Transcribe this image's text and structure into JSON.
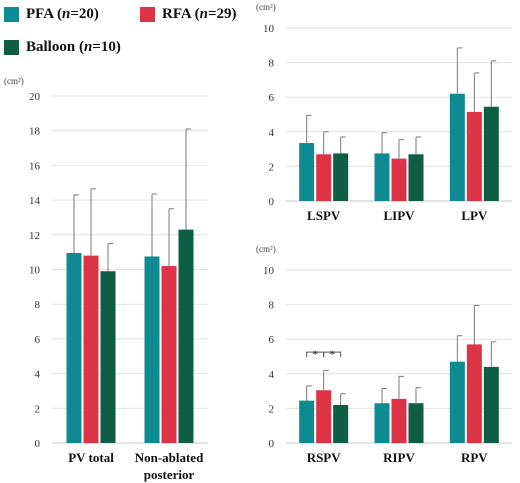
{
  "colors": {
    "PFA": "#0e8a92",
    "RFA": "#dc3445",
    "Balloon": "#0d5e44"
  },
  "legend": [
    {
      "key": "PFA",
      "name": "PFA",
      "n_prefix": "n",
      "n_value": "=20"
    },
    {
      "key": "RFA",
      "name": "RFA",
      "n_prefix": "n",
      "n_value": "=29"
    },
    {
      "key": "Balloon",
      "name": "Balloon",
      "n_prefix": "n",
      "n_value": "=10"
    }
  ],
  "chart_data": [
    {
      "type": "bar",
      "unit": "(cm²)",
      "ylim": [
        0,
        20
      ],
      "yticks": [
        "0",
        "2",
        "4",
        "6",
        "8",
        "10",
        "12",
        "14",
        "16",
        "18",
        "20"
      ],
      "grid": true,
      "categories": [
        [
          "PV total"
        ],
        [
          "Non-ablated",
          "posterior"
        ]
      ],
      "series": [
        {
          "name": "PFA",
          "values": [
            10.95,
            10.75
          ],
          "errors": [
            3.35,
            3.6
          ]
        },
        {
          "name": "RFA",
          "values": [
            10.8,
            10.2
          ],
          "errors": [
            3.85,
            3.3
          ]
        },
        {
          "name": "Balloon",
          "values": [
            9.9,
            12.3
          ],
          "errors": [
            1.6,
            5.8
          ]
        }
      ],
      "annotations": []
    },
    {
      "type": "bar",
      "unit": "(cm²)",
      "ylim": [
        0,
        10
      ],
      "yticks": [
        "0",
        "2",
        "4",
        "6",
        "8",
        "10"
      ],
      "grid": true,
      "categories": [
        [
          "LSPV"
        ],
        [
          "LIPV"
        ],
        [
          "LPV"
        ]
      ],
      "series": [
        {
          "name": "PFA",
          "values": [
            3.35,
            2.75,
            6.2
          ],
          "errors": [
            1.6,
            1.2,
            2.65
          ]
        },
        {
          "name": "RFA",
          "values": [
            2.7,
            2.45,
            5.15
          ],
          "errors": [
            1.3,
            1.1,
            2.25
          ]
        },
        {
          "name": "Balloon",
          "values": [
            2.75,
            2.7,
            5.45
          ],
          "errors": [
            0.95,
            1.0,
            2.65
          ]
        }
      ],
      "annotations": []
    },
    {
      "type": "bar",
      "unit": "(cm²)",
      "ylim": [
        0,
        10
      ],
      "yticks": [
        "0",
        "2",
        "4",
        "6",
        "8",
        "10"
      ],
      "grid": true,
      "categories": [
        [
          "RSPV"
        ],
        [
          "RIPV"
        ],
        [
          "RPV"
        ]
      ],
      "series": [
        {
          "name": "PFA",
          "values": [
            2.45,
            2.3,
            4.7
          ],
          "errors": [
            0.85,
            0.85,
            1.5
          ]
        },
        {
          "name": "RFA",
          "values": [
            3.05,
            2.55,
            5.7
          ],
          "errors": [
            1.15,
            1.3,
            2.25
          ]
        },
        {
          "name": "Balloon",
          "values": [
            2.2,
            2.3,
            4.4
          ],
          "errors": [
            0.65,
            0.9,
            1.45
          ]
        }
      ],
      "annotations": [
        {
          "category": 0,
          "from": 0,
          "to": 1,
          "label": "*"
        },
        {
          "category": 0,
          "from": 1,
          "to": 2,
          "label": "*"
        }
      ]
    }
  ]
}
